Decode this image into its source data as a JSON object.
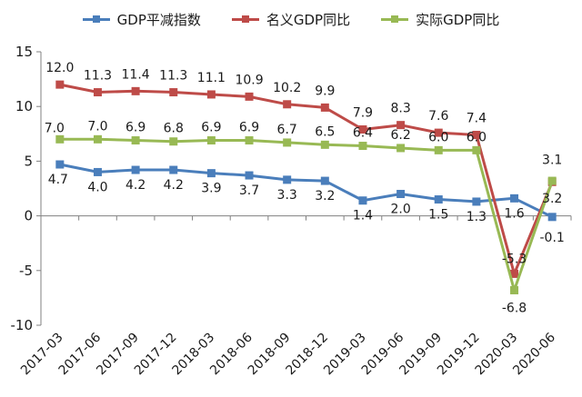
{
  "chart_data": {
    "type": "line",
    "categories": [
      "2017-03",
      "2017-06",
      "2017-09",
      "2017-12",
      "2018-03",
      "2018-06",
      "2018-09",
      "2018-12",
      "2019-03",
      "2019-06",
      "2019-09",
      "2019-12",
      "2020-03",
      "2020-06"
    ],
    "series": [
      {
        "name": "GDP平减指数",
        "color": "#4a7ebb",
        "values": [
          4.7,
          4.0,
          4.2,
          4.2,
          3.9,
          3.7,
          3.3,
          3.2,
          1.4,
          2.0,
          1.5,
          1.3,
          1.6,
          -0.1
        ]
      },
      {
        "name": "名义GDP同比",
        "color": "#be4b48",
        "values": [
          12.0,
          11.3,
          11.4,
          11.3,
          11.1,
          10.9,
          10.2,
          9.9,
          7.9,
          8.3,
          7.6,
          7.4,
          -5.3,
          3.1
        ]
      },
      {
        "name": "实际GDP同比",
        "color": "#98b954",
        "values": [
          7.0,
          7.0,
          6.9,
          6.8,
          6.9,
          6.9,
          6.7,
          6.5,
          6.4,
          6.2,
          6.0,
          6.0,
          -6.8,
          3.2
        ]
      }
    ],
    "data_labels": {
      "GDP平减指数": [
        "4.7",
        "4.0",
        "4.2",
        "4.2",
        "3.9",
        "3.7",
        "3.3",
        "3.2",
        "1.4",
        "2.0",
        "1.5",
        "1.3",
        "1.6",
        "-0.1"
      ],
      "名义GDP同比": [
        "12.0",
        "11.3",
        "11.4",
        "11.3",
        "11.1",
        "10.9",
        "10.2",
        "9.9",
        "7.9",
        "8.3",
        "7.6",
        "7.4",
        "-5.3",
        "3.1"
      ],
      "实际GDP同比": [
        "7.0",
        "7.0",
        "6.9",
        "6.8",
        "6.9",
        "6.9",
        "6.7",
        "6.5",
        "6.4",
        "6.2",
        "6.0",
        "6.0",
        "-6.8",
        "3.2"
      ]
    },
    "ylim": [
      -10,
      15
    ],
    "yticks": [
      -10,
      -5,
      0,
      5,
      10,
      15
    ],
    "xlabel": "",
    "ylabel": "",
    "title": "",
    "legend": "top",
    "grid": false
  }
}
